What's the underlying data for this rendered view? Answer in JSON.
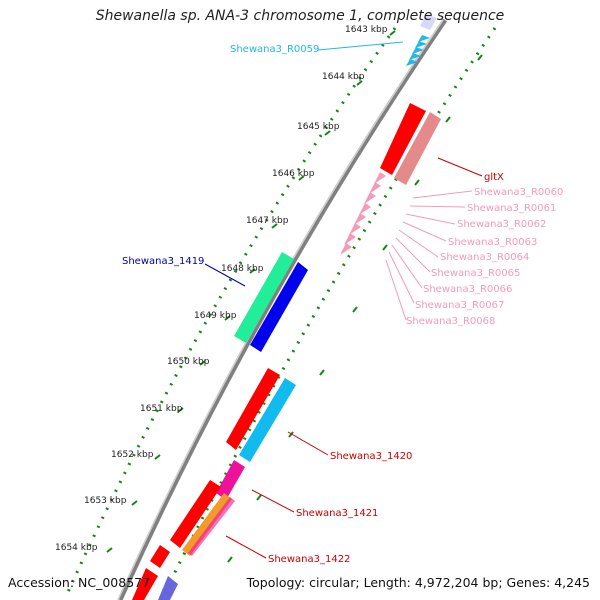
{
  "header": {
    "title": "Shewanella sp. ANA-3 chromosome 1, complete sequence"
  },
  "footer": {
    "accession": "Accession: NC_008577",
    "summary": "Topology: circular; Length: 4,972,204 bp; Genes: 4,245"
  },
  "ticks": [
    "1643 kbp",
    "1644 kbp",
    "1645 kbp",
    "1646 kbp",
    "1647 kbp",
    "1648 kbp",
    "1649 kbp",
    "1650 kbp",
    "1651 kbp",
    "1652 kbp",
    "1653 kbp",
    "1654 kbp"
  ],
  "labels": {
    "r0059": "Shewana3_R0059",
    "gltx": "gltX",
    "r0060": "Shewana3_R0060",
    "r0061": "Shewana3_R0061",
    "r0062": "Shewana3_R0062",
    "r0063": "Shewana3_R0063",
    "r0064": "Shewana3_R0064",
    "r0065": "Shewana3_R0065",
    "r0066": "Shewana3_R0066",
    "r0067": "Shewana3_R0067",
    "r0068": "Shewana3_R0068",
    "g1419": "Shewana3_1419",
    "g1420": "Shewana3_1420",
    "g1421": "Shewana3_1421",
    "g1422": "Shewana3_1422"
  },
  "colors": {
    "trna": "#22b8e6",
    "rrna": "#f59ab8",
    "gltx": "#cc0000",
    "g1419": "#0000aa",
    "cds_red": "#ff0000",
    "backbone": "#808080",
    "ticks": "#118811"
  }
}
